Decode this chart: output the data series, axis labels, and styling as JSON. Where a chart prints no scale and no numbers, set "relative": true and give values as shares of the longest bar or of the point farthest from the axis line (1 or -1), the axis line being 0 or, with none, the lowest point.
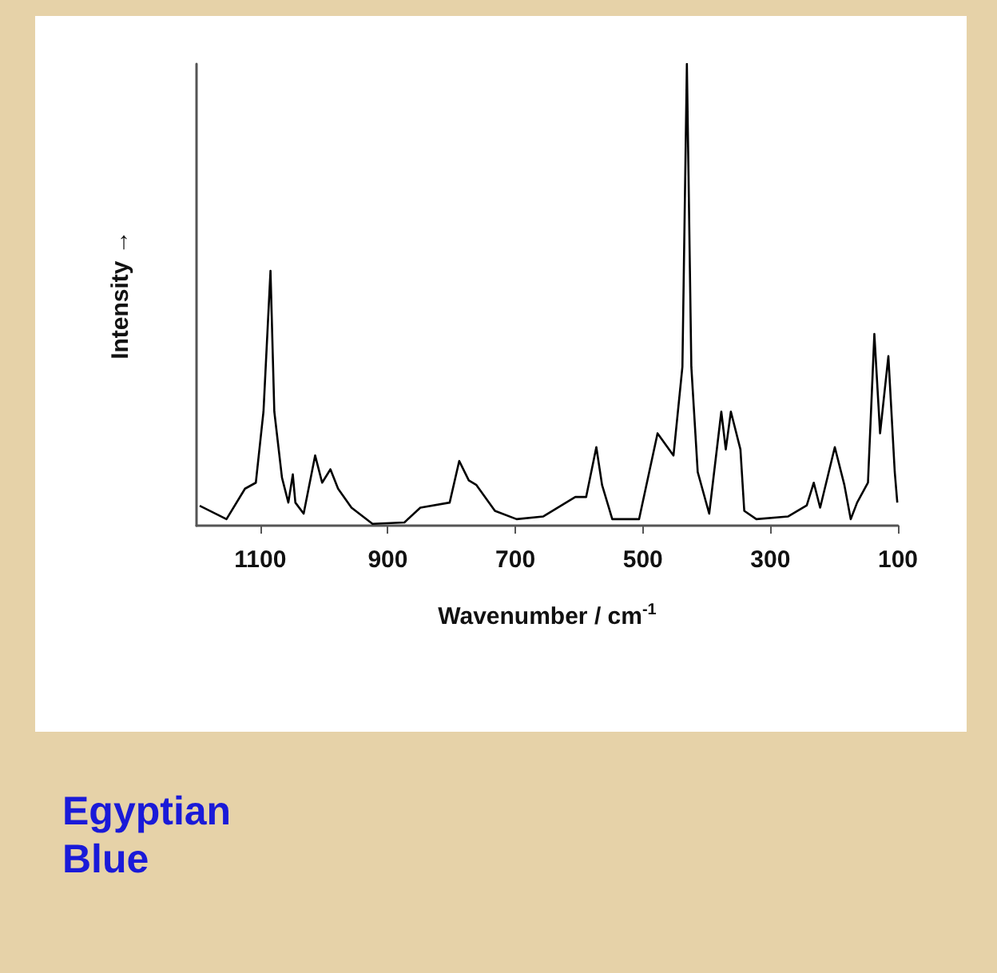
{
  "chart_data": {
    "type": "line",
    "title": "Egyptian Blue",
    "xlabel": "Wavenumber / cm$^{-1}$",
    "ylabel": "Intensity →",
    "relative": true,
    "color": "#000000",
    "xlim": [
      1200,
      100
    ],
    "xticks": [
      1100,
      900,
      700,
      500,
      300,
      100
    ],
    "grid": false,
    "marker": "none",
    "line_style": "solid",
    "x": [
      1195,
      1153,
      1124,
      1107,
      1095,
      1084,
      1078,
      1066,
      1056,
      1049,
      1045,
      1032,
      1014,
      1003,
      990,
      978,
      957,
      924,
      874,
      849,
      803,
      788,
      773,
      761,
      732,
      698,
      656,
      606,
      589,
      573,
      564,
      548,
      506,
      477,
      452,
      438,
      431,
      424,
      414,
      396,
      377,
      370,
      362,
      347,
      341,
      322,
      272,
      243,
      232,
      222,
      199,
      184,
      174,
      164,
      147,
      137,
      128,
      115,
      105,
      101
    ],
    "values": [
      0.043,
      0.014,
      0.08,
      0.093,
      0.247,
      0.552,
      0.247,
      0.104,
      0.05,
      0.111,
      0.05,
      0.026,
      0.152,
      0.093,
      0.122,
      0.08,
      0.039,
      0.004,
      0.007,
      0.039,
      0.05,
      0.14,
      0.098,
      0.088,
      0.032,
      0.014,
      0.02,
      0.062,
      0.062,
      0.17,
      0.088,
      0.014,
      0.014,
      0.2,
      0.152,
      0.344,
      1,
      0.344,
      0.116,
      0.026,
      0.247,
      0.165,
      0.247,
      0.165,
      0.032,
      0.014,
      0.02,
      0.044,
      0.093,
      0.039,
      0.17,
      0.088,
      0.014,
      0.05,
      0.093,
      0.415,
      0.2,
      0.367,
      0.116,
      0.05
    ]
  }
}
